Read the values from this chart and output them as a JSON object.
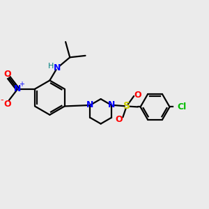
{
  "bg_color": "#ebebeb",
  "bond_color": "#000000",
  "N_color": "#0000ff",
  "O_color": "#ff0000",
  "S_color": "#cccc00",
  "Cl_color": "#00bb00",
  "NH_color": "#008080",
  "linewidth": 1.6,
  "figsize": [
    3.0,
    3.0
  ],
  "dpi": 100,
  "xlim": [
    0,
    12
  ],
  "ylim": [
    0,
    12
  ]
}
